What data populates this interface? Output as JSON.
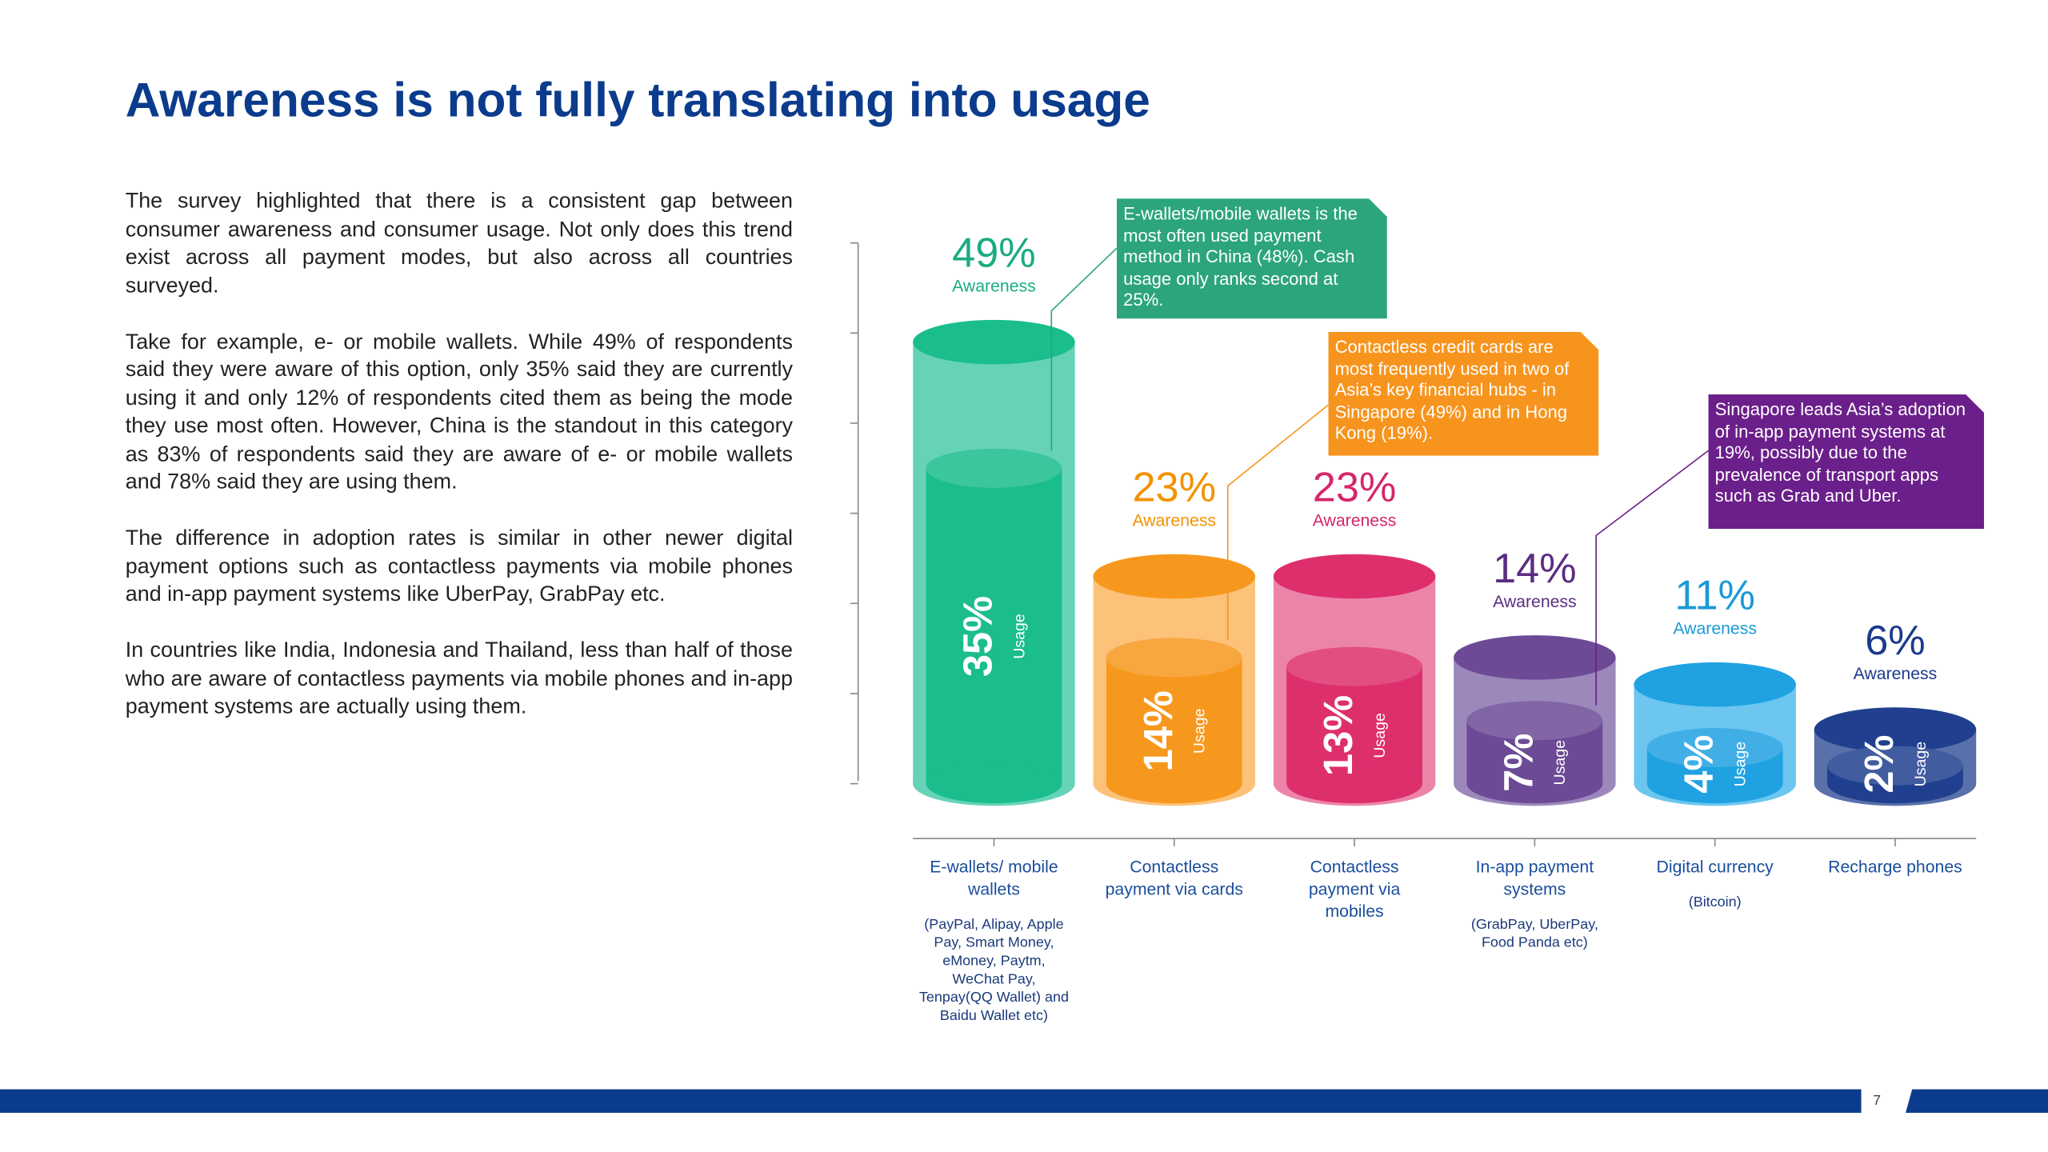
{
  "title": "Awareness is not fully translating into usage",
  "paragraphs": [
    "The survey highlighted that there is a consistent gap between consumer awareness and consumer usage. Not only does this trend exist across all payment modes, but also across all countries surveyed.",
    "Take for example, e- or mobile wallets. While 49% of respondents said they were aware of this option, only 35% said they are currently using it and only 12% of respondents cited them as being the mode they use most often. However, China is the standout in this category as 83% of respondents said they are aware of e- or mobile wallets and 78% said they are using them.",
    "The difference in adoption rates is similar in other newer digital payment options such as contactless payments via mobile phones and in-app payment systems like UberPay, GrabPay etc.",
    "In countries like India, Indonesia and Thailand, less than half of those who are aware of contactless payments via mobile phones and in-app payment systems are actually using them."
  ],
  "page_number": "7",
  "chart_data": {
    "type": "bar",
    "categories": [
      "E-wallets/ mobile wallets",
      "Contactless payment via cards",
      "Contactless payment via mobiles",
      "In-app payment systems",
      "Digital currency",
      "Recharge phones"
    ],
    "category_notes": [
      "(PayPal, Alipay, Apple Pay, Smart Money, eMoney, Paytm, WeChat Pay, Tenpay(QQ Wallet) and Baidu Wallet etc)",
      null,
      null,
      "(GrabPay, UberPay, Food Panda etc)",
      "(Bitcoin)",
      null
    ],
    "series": [
      {
        "name": "Awareness",
        "values": [
          49,
          23,
          23,
          14,
          11,
          6
        ],
        "value_labels": [
          "49%",
          "23%",
          "23%",
          "14%",
          "11%",
          "6%"
        ],
        "colors": [
          "#66d3b8",
          "#fcc27a",
          "#ec84a9",
          "#9c88bb",
          "#6cc6ef",
          "#5a70ab"
        ]
      },
      {
        "name": "Usage",
        "values": [
          35,
          14,
          13,
          7,
          4,
          2
        ],
        "value_labels": [
          "35%",
          "14%",
          "13%",
          "7%",
          "4%",
          "2%"
        ],
        "colors": [
          "#1bbd8d",
          "#f7981e",
          "#de2f6d",
          "#6c4a96",
          "#20a2e2",
          "#20408f"
        ]
      }
    ],
    "label_colors": [
      "#1aab82",
      "#f39200",
      "#d6256a",
      "#5b2d82",
      "#1a9ad6",
      "#1c3a8c"
    ],
    "ylim": [
      0,
      60
    ],
    "yticks": [
      0,
      10,
      20,
      30,
      40,
      50,
      60
    ],
    "annotations": [
      {
        "text": "E-wallets/mobile wallets is the most often used payment method in China (48%). Cash usage only ranks second at 25%.",
        "color": "#2ca57a"
      },
      {
        "text": "Contactless credit cards are most frequently used in two of Asia’s key financial hubs - in Singapore (49%) and in Hong Kong (19%).",
        "color": "#f7941d"
      },
      {
        "text": "Singapore leads Asia’s adoption of in-app payment systems at 19%, possibly due to the prevalence of transport apps such as Grab and Uber.",
        "color": "#6b1f8a"
      }
    ]
  }
}
